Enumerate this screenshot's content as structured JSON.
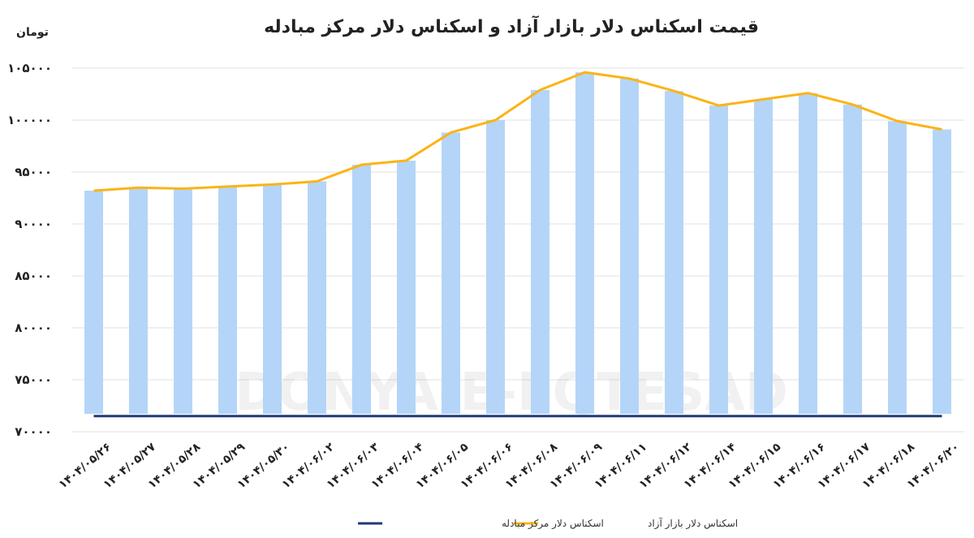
{
  "chart_data": {
    "type": "bar",
    "title": "قیمت اسکناس دلار بازار آزاد و اسکناس دلار مرکز مبادله",
    "ylabel": "تومان",
    "xlabel": "",
    "ylim": [
      70000,
      105000
    ],
    "yticks": [
      70000,
      75000,
      80000,
      85000,
      90000,
      95000,
      100000,
      105000
    ],
    "ytick_labels": [
      "۷۰۰۰۰",
      "۷۵۰۰۰",
      "۸۰۰۰۰",
      "۸۵۰۰۰",
      "۹۰۰۰۰",
      "۹۵۰۰۰",
      "۱۰۰۰۰۰",
      "۱۰۵۰۰۰"
    ],
    "grid": true,
    "legend_position": "bottom",
    "categories": [
      "۱۴۰۴/۰۵/۲۶",
      "۱۴۰۴/۰۵/۲۷",
      "۱۴۰۴/۰۵/۲۸",
      "۱۴۰۴/۰۵/۲۹",
      "۱۴۰۴/۰۵/۳۰",
      "۱۴۰۴/۰۶/۰۲",
      "۱۴۰۴/۰۶/۰۳",
      "۱۴۰۴/۰۶/۰۴",
      "۱۴۰۴/۰۶/۰۵",
      "۱۴۰۴/۰۶/۰۶",
      "۱۴۰۴/۰۶/۰۸",
      "۱۴۰۴/۰۶/۰۹",
      "۱۴۰۴/۰۶/۱۱",
      "۱۴۰۴/۰۶/۱۲",
      "۱۴۰۴/۰۶/۱۴",
      "۱۴۰۴/۰۶/۱۵",
      "۱۴۰۴/۰۶/۱۶",
      "۱۴۰۴/۰۶/۱۷",
      "۱۴۰۴/۰۶/۱۸",
      "۱۴۰۴/۰۶/۲۰"
    ],
    "series": [
      {
        "name": "اسکناس دلار بازار آزاد",
        "kind": "bar+line",
        "bar_color": "#B4D5F8",
        "line_color": "#FBB416",
        "values": [
          93200,
          93500,
          93400,
          93600,
          93800,
          94100,
          95700,
          96100,
          98800,
          100000,
          102900,
          104600,
          104000,
          102800,
          101400,
          102000,
          102600,
          101500,
          99900,
          99100
        ]
      },
      {
        "name": "اسکناس دلار مرکز مبادله",
        "kind": "line",
        "line_color": "#1F3A77",
        "values": [
          71500,
          71500,
          71500,
          71500,
          71500,
          71500,
          71500,
          71500,
          71500,
          71500,
          71500,
          71500,
          71500,
          71500,
          71500,
          71500,
          71500,
          71500,
          71500,
          71500
        ]
      }
    ]
  },
  "watermark": "DONYA-E-EQTESAD"
}
